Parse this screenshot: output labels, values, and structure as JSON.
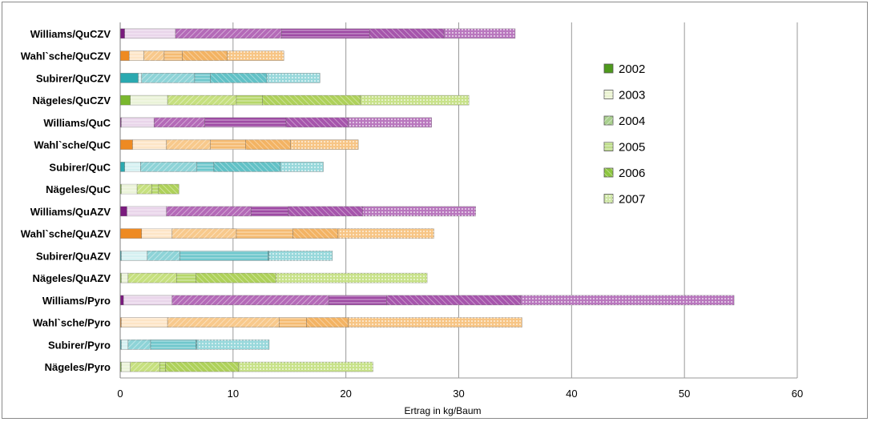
{
  "chart_data": {
    "type": "bar",
    "orientation": "horizontal",
    "stacked": true,
    "xlabel": "Ertrag in kg/Baum",
    "xlim": [
      0,
      60
    ],
    "xticks": [
      0,
      10,
      20,
      30,
      40,
      50,
      60
    ],
    "grid": "vertical",
    "legend_position": "right",
    "categories": [
      "Williams/QuCZV",
      "Wahl`sche/QuCZV",
      "Subirer/QuCZV",
      "Nägeles/QuCZV",
      "Williams/QuC",
      "Wahl`sche/QuC",
      "Subirer/QuC",
      "Nägeles/QuC",
      "Williams/QuAZV",
      "Wahl`sche/QuAZV",
      "Subirer/QuAZV",
      "Nägeles/QuAZV",
      "Williams/Pyro",
      "Wahl`sche/Pyro",
      "Subirer/Pyro",
      "Nägeles/Pyro"
    ],
    "series": [
      {
        "name": "2002",
        "values": [
          0.4,
          0.8,
          1.6,
          0.9,
          0.1,
          1.1,
          0.4,
          0.1,
          0.6,
          1.9,
          0.1,
          0.1,
          0.3,
          0.1,
          0.1,
          0.1
        ]
      },
      {
        "name": "2003",
        "values": [
          4.5,
          1.3,
          0.3,
          3.3,
          2.9,
          3.0,
          1.4,
          1.4,
          3.5,
          2.7,
          2.3,
          0.6,
          4.3,
          4.1,
          0.6,
          0.8
        ]
      },
      {
        "name": "2004",
        "values": [
          9.4,
          1.8,
          4.7,
          6.1,
          4.5,
          3.9,
          5.0,
          1.3,
          7.5,
          5.7,
          2.9,
          4.3,
          13.9,
          9.9,
          2.0,
          2.6
        ]
      },
      {
        "name": "2005",
        "values": [
          7.8,
          1.6,
          1.4,
          2.3,
          7.2,
          3.1,
          1.5,
          0.6,
          3.3,
          5.0,
          7.8,
          1.7,
          5.1,
          2.4,
          4.0,
          0.5
        ]
      },
      {
        "name": "2006",
        "values": [
          6.6,
          4.0,
          5.0,
          8.7,
          5.5,
          4.0,
          5.9,
          1.8,
          6.6,
          4.0,
          0.1,
          7.1,
          11.9,
          3.7,
          0.1,
          6.5
        ]
      },
      {
        "name": "2007",
        "values": [
          6.3,
          5.0,
          4.7,
          9.6,
          7.4,
          6.0,
          3.8,
          0.0,
          10.0,
          8.5,
          5.6,
          13.4,
          18.9,
          15.4,
          6.4,
          11.9
        ]
      }
    ],
    "colors": {
      "Williams": [
        "#7a1a7e",
        "#e9d5ea",
        "#b46ab8",
        "#9e4aa4",
        "#a655ac",
        "#b977be"
      ],
      "Wahl`sche": [
        "#ee8a22",
        "#fde5c6",
        "#f8c98c",
        "#f5bb72",
        "#f3b363",
        "#f7c585"
      ],
      "Subirer": [
        "#2aa9b0",
        "#d4f0f1",
        "#8ed3d7",
        "#6fc7cc",
        "#62c1c6",
        "#98d8db"
      ],
      "Nägeles": [
        "#7ab82e",
        "#eaf3d8",
        "#c6e07f",
        "#b6d76a",
        "#aed15a",
        "#c8e28a"
      ]
    },
    "legend_colors": [
      "#4e9a1c",
      "#eaf3d0",
      "#a9d08e",
      "#bedd8a",
      "#8dc63f",
      "#cfe6a6"
    ]
  }
}
